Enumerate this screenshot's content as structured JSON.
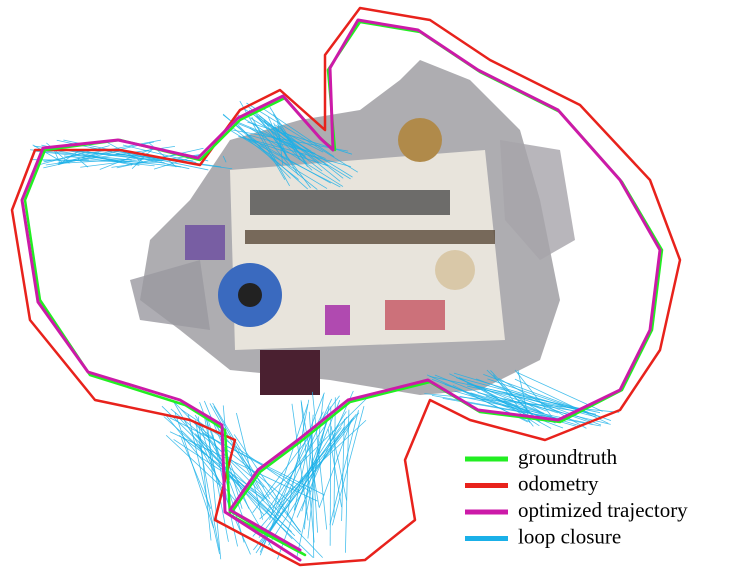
{
  "legend": {
    "items": [
      {
        "label": "groundtruth",
        "color": "#22ee22"
      },
      {
        "label": "odometry",
        "color": "#e8221c"
      },
      {
        "label": "optimized trajectory",
        "color": "#cc1aa8"
      },
      {
        "label": "loop closure",
        "color": "#1ab0e8"
      }
    ]
  }
}
